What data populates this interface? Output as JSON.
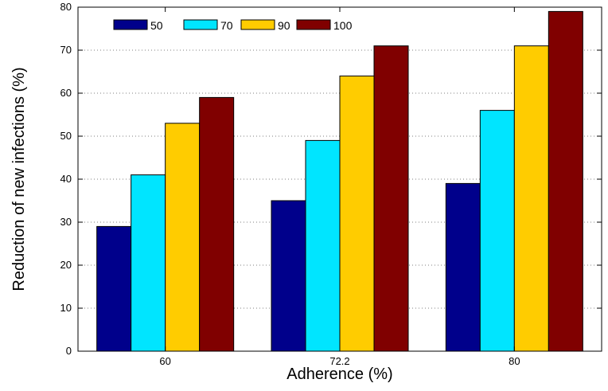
{
  "chart_data": {
    "type": "bar",
    "title": "",
    "xlabel": "Adherence (%)",
    "ylabel": "Reduction of new infections (%)",
    "categories": [
      "60",
      "72.2",
      "80"
    ],
    "series": [
      {
        "name": "50",
        "color": "#00008b",
        "values": [
          29,
          35,
          39
        ]
      },
      {
        "name": "70",
        "color": "#00e5ff",
        "values": [
          41,
          49,
          56
        ]
      },
      {
        "name": "90",
        "color": "#ffcc00",
        "values": [
          53,
          64,
          71
        ]
      },
      {
        "name": "100",
        "color": "#800000",
        "values": [
          59,
          71,
          79
        ]
      }
    ],
    "ylim": [
      0,
      80
    ],
    "yticks": [
      "0",
      "10",
      "20",
      "30",
      "40",
      "50",
      "60",
      "70",
      "80"
    ],
    "grid": "horizontal dotted",
    "legend_position": "top-left, horizontal"
  }
}
